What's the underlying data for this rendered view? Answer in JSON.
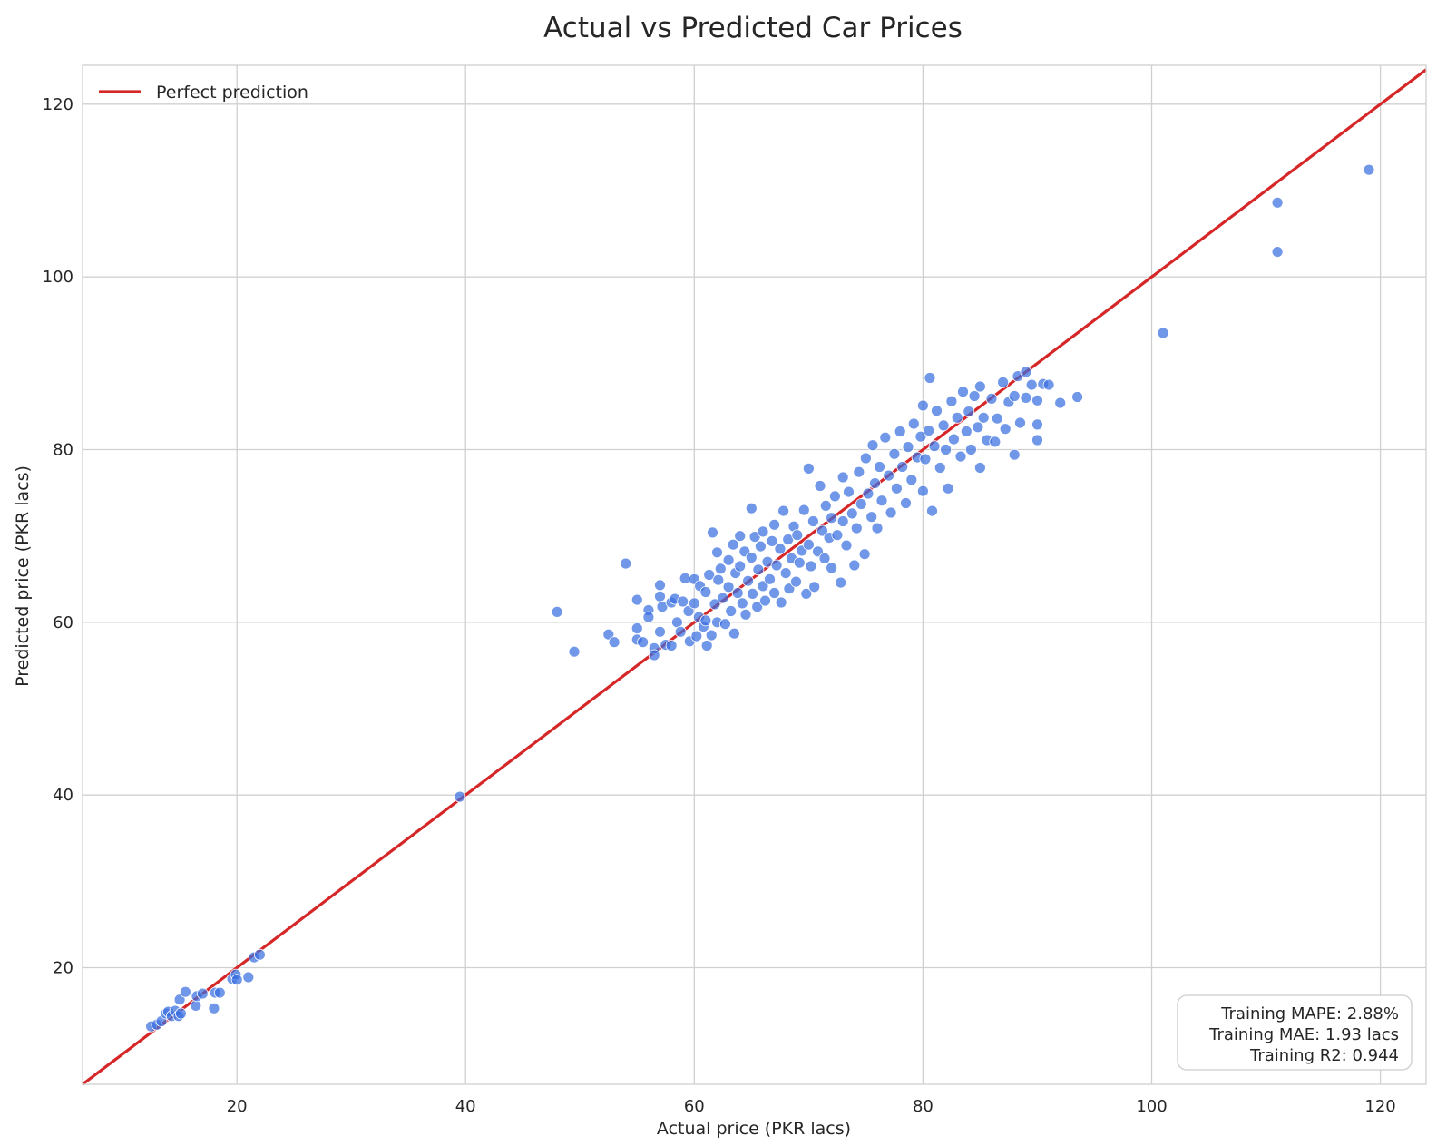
{
  "chart_data": {
    "type": "scatter",
    "title": "Actual vs Predicted Car Prices",
    "xlabel": "Actual price (PKR lacs)",
    "ylabel": "Predicted price (PKR lacs)",
    "xlim": [
      6.5,
      124.0
    ],
    "ylim": [
      6.5,
      124.5
    ],
    "xticks": [
      20,
      40,
      60,
      80,
      100,
      120
    ],
    "yticks": [
      20,
      40,
      60,
      80,
      100,
      120
    ],
    "grid": true,
    "legend": {
      "position": "top-left",
      "entries": [
        {
          "label": "Perfect prediction",
          "color": "#d62728",
          "style": "line"
        }
      ]
    },
    "series": [
      {
        "style": "points",
        "color": "#3a6fe0",
        "points": [
          [
            12.5,
            13.2
          ],
          [
            13.0,
            13.4
          ],
          [
            13.4,
            13.8
          ],
          [
            13.8,
            14.7
          ],
          [
            14.0,
            14.9
          ],
          [
            14.3,
            14.4
          ],
          [
            14.6,
            15.0
          ],
          [
            14.9,
            14.4
          ],
          [
            15.1,
            14.7
          ],
          [
            15.0,
            16.3
          ],
          [
            15.5,
            17.2
          ],
          [
            16.4,
            15.6
          ],
          [
            16.5,
            16.7
          ],
          [
            17.0,
            17.0
          ],
          [
            18.0,
            15.3
          ],
          [
            18.1,
            17.1
          ],
          [
            18.5,
            17.1
          ],
          [
            19.6,
            18.7
          ],
          [
            19.9,
            19.2
          ],
          [
            20.0,
            18.6
          ],
          [
            21.0,
            18.9
          ],
          [
            21.5,
            21.2
          ],
          [
            22.0,
            21.5
          ],
          [
            39.5,
            39.8
          ],
          [
            48.0,
            61.2
          ],
          [
            49.5,
            56.6
          ],
          [
            52.5,
            58.6
          ],
          [
            53.0,
            57.7
          ],
          [
            54.0,
            66.8
          ],
          [
            55.0,
            62.6
          ],
          [
            55.0,
            59.3
          ],
          [
            55.0,
            58.0
          ],
          [
            55.5,
            57.7
          ],
          [
            56.0,
            61.4
          ],
          [
            56.0,
            60.6
          ],
          [
            56.5,
            57.0
          ],
          [
            56.5,
            56.2
          ],
          [
            57.0,
            64.3
          ],
          [
            57.0,
            63.0
          ],
          [
            57.0,
            58.9
          ],
          [
            57.2,
            61.8
          ],
          [
            57.5,
            57.4
          ],
          [
            58.0,
            62.3
          ],
          [
            58.0,
            57.3
          ],
          [
            58.3,
            62.7
          ],
          [
            58.5,
            60.0
          ],
          [
            58.8,
            58.9
          ],
          [
            59.0,
            62.4
          ],
          [
            59.2,
            65.1
          ],
          [
            59.5,
            61.3
          ],
          [
            59.6,
            57.8
          ],
          [
            60.0,
            65.0
          ],
          [
            60.0,
            62.2
          ],
          [
            60.2,
            58.4
          ],
          [
            60.4,
            60.6
          ],
          [
            60.5,
            64.2
          ],
          [
            60.8,
            59.5
          ],
          [
            61.0,
            63.5
          ],
          [
            61.0,
            60.2
          ],
          [
            61.1,
            57.3
          ],
          [
            61.3,
            65.5
          ],
          [
            61.5,
            58.5
          ],
          [
            61.6,
            70.4
          ],
          [
            61.8,
            62.1
          ],
          [
            62.0,
            68.1
          ],
          [
            62.0,
            60.0
          ],
          [
            62.1,
            64.9
          ],
          [
            62.3,
            66.2
          ],
          [
            62.5,
            62.8
          ],
          [
            62.7,
            59.8
          ],
          [
            63.0,
            67.2
          ],
          [
            63.0,
            64.1
          ],
          [
            63.2,
            61.3
          ],
          [
            63.4,
            69.0
          ],
          [
            63.5,
            58.7
          ],
          [
            63.6,
            65.7
          ],
          [
            63.8,
            63.4
          ],
          [
            64.0,
            70.0
          ],
          [
            64.0,
            66.5
          ],
          [
            64.2,
            62.2
          ],
          [
            64.4,
            68.2
          ],
          [
            64.5,
            60.9
          ],
          [
            64.7,
            64.8
          ],
          [
            65.0,
            73.2
          ],
          [
            65.0,
            67.5
          ],
          [
            65.1,
            63.3
          ],
          [
            65.3,
            69.9
          ],
          [
            65.5,
            61.8
          ],
          [
            65.6,
            66.1
          ],
          [
            65.8,
            68.8
          ],
          [
            66.0,
            64.2
          ],
          [
            66.0,
            70.5
          ],
          [
            66.2,
            62.5
          ],
          [
            66.4,
            67.0
          ],
          [
            66.6,
            65.0
          ],
          [
            66.8,
            69.4
          ],
          [
            67.0,
            71.3
          ],
          [
            67.0,
            63.4
          ],
          [
            67.2,
            66.6
          ],
          [
            67.5,
            68.5
          ],
          [
            67.6,
            62.3
          ],
          [
            67.8,
            72.9
          ],
          [
            68.0,
            65.7
          ],
          [
            68.2,
            69.6
          ],
          [
            68.3,
            63.9
          ],
          [
            68.5,
            67.4
          ],
          [
            68.7,
            71.1
          ],
          [
            68.9,
            64.7
          ],
          [
            69.0,
            70.1
          ],
          [
            69.2,
            66.9
          ],
          [
            69.4,
            68.3
          ],
          [
            69.6,
            73.0
          ],
          [
            69.8,
            63.3
          ],
          [
            70.0,
            77.8
          ],
          [
            70.0,
            69.0
          ],
          [
            70.2,
            66.5
          ],
          [
            70.4,
            71.7
          ],
          [
            70.5,
            64.1
          ],
          [
            70.8,
            68.2
          ],
          [
            71.0,
            75.8
          ],
          [
            71.2,
            70.6
          ],
          [
            71.4,
            67.4
          ],
          [
            71.5,
            73.5
          ],
          [
            71.8,
            69.8
          ],
          [
            72.0,
            72.1
          ],
          [
            72.0,
            66.3
          ],
          [
            72.3,
            74.6
          ],
          [
            72.5,
            70.1
          ],
          [
            72.8,
            64.6
          ],
          [
            73.0,
            76.8
          ],
          [
            73.0,
            71.7
          ],
          [
            73.3,
            68.9
          ],
          [
            73.5,
            75.1
          ],
          [
            73.8,
            72.6
          ],
          [
            74.0,
            66.6
          ],
          [
            74.2,
            70.9
          ],
          [
            74.4,
            77.4
          ],
          [
            74.6,
            73.7
          ],
          [
            74.9,
            67.9
          ],
          [
            75.0,
            79.0
          ],
          [
            75.2,
            74.9
          ],
          [
            75.5,
            72.2
          ],
          [
            75.6,
            80.5
          ],
          [
            75.8,
            76.1
          ],
          [
            76.0,
            70.9
          ],
          [
            76.2,
            78.0
          ],
          [
            76.4,
            74.1
          ],
          [
            76.7,
            81.4
          ],
          [
            77.0,
            77.0
          ],
          [
            77.2,
            72.7
          ],
          [
            77.5,
            79.5
          ],
          [
            77.7,
            75.5
          ],
          [
            78.0,
            82.1
          ],
          [
            78.2,
            78.0
          ],
          [
            78.5,
            73.8
          ],
          [
            78.7,
            80.3
          ],
          [
            79.0,
            76.5
          ],
          [
            79.2,
            83.0
          ],
          [
            79.5,
            79.1
          ],
          [
            79.8,
            81.5
          ],
          [
            80.0,
            75.2
          ],
          [
            80.0,
            85.1
          ],
          [
            80.2,
            78.9
          ],
          [
            80.5,
            82.2
          ],
          [
            80.6,
            88.3
          ],
          [
            80.8,
            72.9
          ],
          [
            81.0,
            80.4
          ],
          [
            81.2,
            84.5
          ],
          [
            81.5,
            77.9
          ],
          [
            81.8,
            82.8
          ],
          [
            82.0,
            80.0
          ],
          [
            82.2,
            75.5
          ],
          [
            82.5,
            85.6
          ],
          [
            82.7,
            81.2
          ],
          [
            83.0,
            83.7
          ],
          [
            83.3,
            79.2
          ],
          [
            83.5,
            86.7
          ],
          [
            83.8,
            82.1
          ],
          [
            84.0,
            84.4
          ],
          [
            84.2,
            80.0
          ],
          [
            84.5,
            86.2
          ],
          [
            84.8,
            82.6
          ],
          [
            85.0,
            87.3
          ],
          [
            85.0,
            77.9
          ],
          [
            85.3,
            83.7
          ],
          [
            85.6,
            81.1
          ],
          [
            86.0,
            85.9
          ],
          [
            86.3,
            80.9
          ],
          [
            86.5,
            83.6
          ],
          [
            87.0,
            87.8
          ],
          [
            87.2,
            82.4
          ],
          [
            87.5,
            85.5
          ],
          [
            88.0,
            86.2
          ],
          [
            88.0,
            79.4
          ],
          [
            88.3,
            88.5
          ],
          [
            88.5,
            83.1
          ],
          [
            89.0,
            89.0
          ],
          [
            89.0,
            86.0
          ],
          [
            89.5,
            87.5
          ],
          [
            90.0,
            85.7
          ],
          [
            90.0,
            82.9
          ],
          [
            90.0,
            81.1
          ],
          [
            90.5,
            87.6
          ],
          [
            91.0,
            87.5
          ],
          [
            92.0,
            85.4
          ],
          [
            93.5,
            86.1
          ],
          [
            101.0,
            93.5
          ],
          [
            111.0,
            108.6
          ],
          [
            111.0,
            102.9
          ],
          [
            119.0,
            112.4
          ]
        ]
      },
      {
        "name": "Perfect prediction",
        "style": "line",
        "color": "#d62728",
        "x": [
          6.5,
          124.0
        ],
        "y": [
          6.5,
          124.0
        ]
      }
    ],
    "annotations": [
      "Training MAPE: 2.88%",
      "Training MAE: 1.93 lacs",
      "Training R2: 0.944"
    ]
  }
}
